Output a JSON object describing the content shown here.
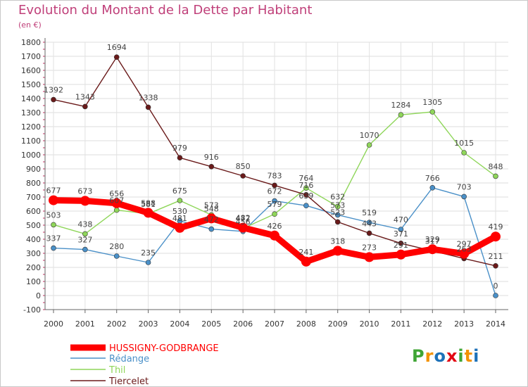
{
  "title": "Evolution du Montant de la Dette par Habitant",
  "subtitle": "(en €)",
  "logo": "Proxiti",
  "logo_colors": [
    "#3fa535",
    "#f39200",
    "#1d71b8",
    "#e30613",
    "#3fa535",
    "#f39200",
    "#1d71b8"
  ],
  "chart_data": {
    "type": "line",
    "title": "Evolution du Montant de la Dette par Habitant",
    "ylabel": "(en €)",
    "xlabel": "",
    "x": [
      "2000",
      "2001",
      "2002",
      "2003",
      "2004",
      "2005",
      "2006",
      "2007",
      "2008",
      "2009",
      "2010",
      "2011",
      "2012",
      "2013",
      "2014"
    ],
    "ylim": [
      -100,
      1800
    ],
    "yticks": [
      -100,
      0,
      100,
      200,
      300,
      400,
      500,
      600,
      700,
      800,
      900,
      1000,
      1100,
      1200,
      1300,
      1400,
      1500,
      1600,
      1700,
      1800
    ],
    "grid": true,
    "legend_position": "bottom-left",
    "series": [
      {
        "name": "HUSSIGNY-GODBRANGE",
        "color": "#ff0000",
        "values": [
          677,
          673,
          656,
          588,
          481,
          548,
          482,
          426,
          241,
          318,
          273,
          291,
          329,
          297,
          419
        ]
      },
      {
        "name": "Rédange",
        "color": "#4a90c8",
        "values": [
          337,
          327,
          280,
          235,
          530,
          472,
          456,
          672,
          639,
          573,
          519,
          470,
          766,
          703,
          0
        ]
      },
      {
        "name": "Thil",
        "color": "#8fd65a",
        "values": [
          503,
          438,
          607,
          581,
          675,
          573,
          477,
          579,
          764,
          632,
          1070,
          1284,
          1305,
          1015,
          848
        ]
      },
      {
        "name": "Tiercelet",
        "color": "#6a1a1a",
        "values": [
          1392,
          1343,
          1694,
          1338,
          979,
          916,
          850,
          783,
          716,
          523,
          443,
          371,
          317,
          263,
          211
        ]
      }
    ]
  }
}
